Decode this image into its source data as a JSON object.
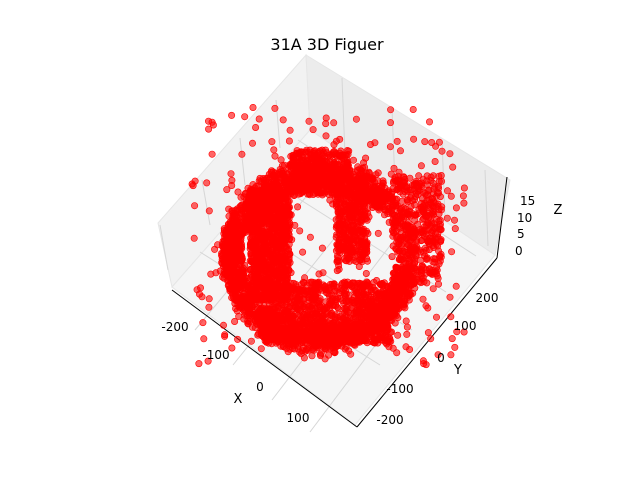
{
  "chart_data": {
    "type": "scatter",
    "projection": "3d",
    "title": "31A 3D Figuer",
    "xlabel": "X",
    "ylabel": "Y",
    "zlabel": "Z",
    "xlim": [
      -250,
      250
    ],
    "ylim": [
      -250,
      250
    ],
    "zlim": [
      0,
      18
    ],
    "xticks": [
      "-200",
      "-100",
      "0",
      "100"
    ],
    "yticks": [
      "-200",
      "-100",
      "0",
      "100",
      "200"
    ],
    "zticks": [
      "0",
      "5",
      "10",
      "15"
    ],
    "marker_color": "#ff0000",
    "marker_alpha": 0.6,
    "grid": true,
    "pane_color": "#f2f2f2"
  }
}
